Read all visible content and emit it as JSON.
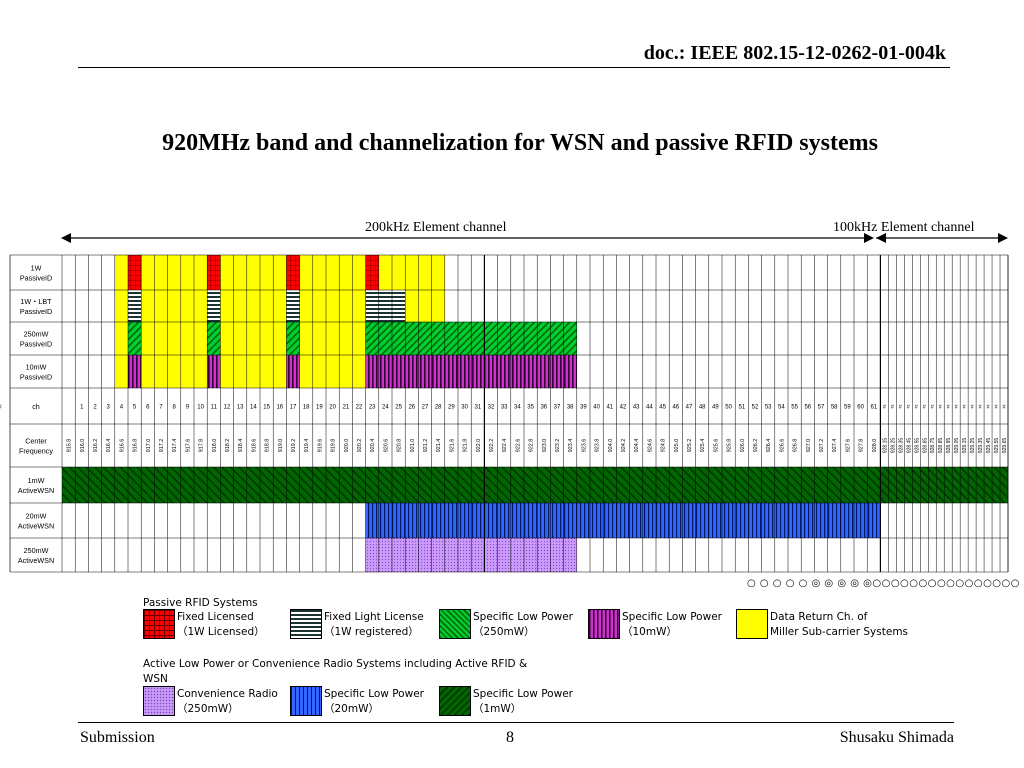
{
  "header": {
    "doc_id": "doc.: IEEE 802.15-12-0262-01-004k"
  },
  "title": "920MHz band and channelization for WSN and passive RFID systems",
  "band_labels": {
    "left": "200kHz Element channel",
    "right": "100kHz Element channel"
  },
  "table": {
    "rows": [
      {
        "label": "1W\nPassiveID"
      },
      {
        "label": "1W・LBT\nPassiveID"
      },
      {
        "label": "250mW\nPassiveID"
      },
      {
        "label": "10mW\nPassiveID"
      },
      {
        "label": "ch"
      },
      {
        "label": "Center\nFrequency"
      },
      {
        "label": "1mW\nActiveWSN"
      },
      {
        "label": "20mW\nActiveWSN"
      },
      {
        "label": "250mW\nActiveWSN"
      }
    ],
    "channels": [
      "1",
      "2",
      "3",
      "4",
      "5",
      "6",
      "7",
      "8",
      "9",
      "10",
      "11",
      "12",
      "13",
      "14",
      "15",
      "16",
      "17",
      "18",
      "19",
      "20",
      "21",
      "22",
      "23",
      "24",
      "25",
      "26",
      "27",
      "28",
      "29",
      "30",
      "31",
      "32",
      "33",
      "34",
      "35",
      "36",
      "37",
      "38",
      "39",
      "40",
      "41",
      "42",
      "43",
      "44",
      "45",
      "46",
      "47",
      "48",
      "49",
      "50",
      "51",
      "52",
      "53",
      "54",
      "55",
      "56",
      "57",
      "58",
      "59",
      "60",
      "61",
      "#",
      "#",
      "#",
      "#",
      "#",
      "#",
      "#",
      "#",
      "#",
      "#",
      "#",
      "#",
      "#",
      "#",
      "#",
      "#",
      "#"
    ],
    "frequencies": [
      "915.8",
      "916.0",
      "916.2",
      "916.4",
      "916.6",
      "916.8",
      "917.0",
      "917.2",
      "917.4",
      "917.6",
      "917.8",
      "918.0",
      "918.2",
      "918.4",
      "918.6",
      "918.8",
      "919.0",
      "919.2",
      "919.4",
      "919.6",
      "919.8",
      "920.0",
      "920.2",
      "920.4",
      "920.6",
      "920.8",
      "921.0",
      "921.2",
      "921.4",
      "921.6",
      "921.8",
      "922.0",
      "922.2",
      "922.4",
      "922.6",
      "922.8",
      "923.0",
      "923.2",
      "923.4",
      "923.6",
      "923.8",
      "924.0",
      "924.2",
      "924.4",
      "924.6",
      "924.8",
      "925.0",
      "925.2",
      "925.4",
      "925.6",
      "925.8",
      "926.0",
      "926.2",
      "926.4",
      "926.6",
      "926.8",
      "927.0",
      "927.2",
      "927.4",
      "927.6",
      "927.8",
      "928.0",
      "928.15",
      "928.25",
      "928.35",
      "928.45",
      "928.55",
      "928.65",
      "928.75",
      "928.85",
      "928.95",
      "929.05",
      "929.15",
      "929.25",
      "929.35",
      "929.45",
      "929.55",
      "929.65"
    ]
  },
  "circles_row": "○ ○ ○ ○ ○ ◎ ◎ ◎ ◎ ◎○○○○○○○○○○○○○○○○",
  "legend": {
    "passive_title": "Passive RFID Systems",
    "passive": [
      {
        "text": "Fixed Licensed\n（1W Licensed）",
        "pattern": "red-grid"
      },
      {
        "text": "Fixed Light License\n（1W registered）",
        "pattern": "hstripe"
      },
      {
        "text": "Specific Low Power\n（250mW）",
        "pattern": "green-diag"
      },
      {
        "text": "Specific Low Power\n（10mW）",
        "pattern": "purple-vert"
      },
      {
        "text": "Data Return Ch. of\nMiller Sub-carrier Systems",
        "pattern": "yellow"
      }
    ],
    "active_title": "Active Low Power or Convenience Radio Systems including Active RFID &\nWSN",
    "active": [
      {
        "text": "Convenience Radio\n（250mW）",
        "pattern": "lav-dots"
      },
      {
        "text": "Specific Low Power\n（20mW）",
        "pattern": "blue-vert"
      },
      {
        "text": "Specific Low Power\n（1mW）",
        "pattern": "dkgreen-diag"
      }
    ]
  },
  "colors": {
    "yellow": "#ffff00",
    "red": "#ff0000",
    "green": "#00cc33",
    "purple": "#9933cc",
    "blue": "#3366ff",
    "dark_green": "#006600",
    "lavender": "#cc99ff"
  },
  "footer": {
    "left": "Submission",
    "center": "8",
    "right": "Shusaku Shimada"
  }
}
